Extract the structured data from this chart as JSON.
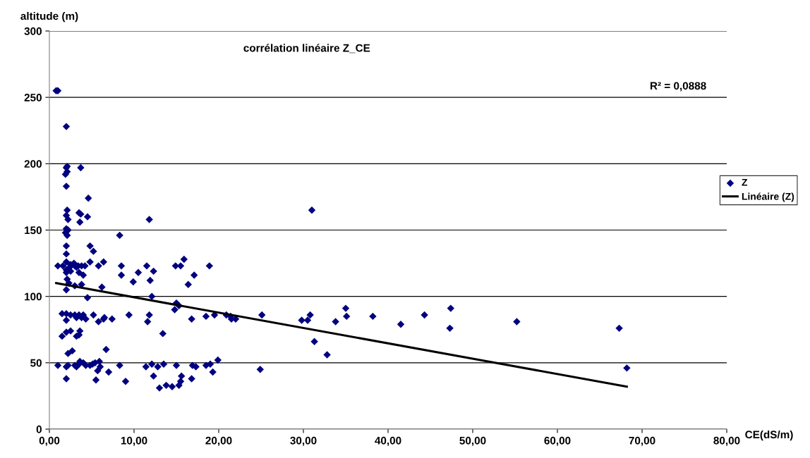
{
  "chart_data": {
    "type": "scatter",
    "title": "corrélation linéaire Z_CE",
    "xlabel": "CE(dS/m)",
    "ylabel": "altitude (m)",
    "annotations": [
      "R² = 0,0888"
    ],
    "xlim": [
      0,
      80
    ],
    "ylim": [
      0,
      300
    ],
    "xticks": [
      {
        "value": 0,
        "label": "0,00"
      },
      {
        "value": 10,
        "label": "10,00"
      },
      {
        "value": 20,
        "label": "20,00"
      },
      {
        "value": 30,
        "label": "30,00"
      },
      {
        "value": 40,
        "label": "40,00"
      },
      {
        "value": 50,
        "label": "50,00"
      },
      {
        "value": 60,
        "label": "60,00"
      },
      {
        "value": 70,
        "label": "70,00"
      },
      {
        "value": 80,
        "label": "80,00"
      }
    ],
    "yticks": [
      0,
      50,
      100,
      150,
      200,
      250,
      300
    ],
    "grid": "y",
    "legend": "right",
    "marker": "diamond",
    "series": [
      {
        "name": "Z",
        "color": "#000080",
        "x": [
          0.8,
          1.0,
          2.0,
          2.1,
          2.0,
          2.1,
          1.9,
          3.7,
          2.0,
          2.1,
          3.5,
          3.7,
          4.5,
          2.0,
          2.2,
          2.0,
          1.9,
          2.2,
          2.1,
          3.6,
          4.6,
          2.0,
          2.0,
          4.8,
          5.2,
          2.0,
          2.5,
          2.9,
          1.0,
          2.0,
          2.4,
          3.0,
          3.4,
          3.8,
          4.2,
          1.6,
          2.0,
          2.5,
          3.2,
          3.5,
          4.0,
          4.8,
          5.8,
          6.4,
          2.1,
          2.3,
          2.0,
          3.0,
          3.8,
          6.2,
          4.5,
          8.3,
          8.5,
          8.5,
          11.8,
          11.5,
          12.3,
          10.5,
          9.9,
          11.9,
          12.1,
          14.9,
          15.5,
          15.9,
          17.1,
          16.4,
          18.9,
          20.9,
          22.0,
          21.5,
          25.1,
          29.8,
          30.8,
          30.5,
          31.0,
          31.3,
          32.8,
          33.8,
          35.0,
          35.1,
          38.2,
          41.5,
          44.3,
          47.4,
          47.3,
          55.2,
          67.3,
          68.2,
          15.0,
          15.3,
          14.8,
          13.4,
          11.8,
          11.6,
          9.4,
          7.4,
          6.5,
          6.4,
          5.2,
          4.0,
          4.3,
          2.0,
          1.5,
          2.5,
          3.0,
          3.5,
          3.2,
          3.8,
          2.0,
          2.0,
          2.5,
          3.5,
          3.6,
          3.2,
          1.5,
          2.2,
          2.7,
          6.7,
          5.8,
          6.0,
          7.0,
          5.5,
          2.0,
          5.7,
          1.0,
          2.0,
          2.2,
          3.0,
          3.2,
          3.5,
          3.6,
          4.0,
          4.3,
          4.8,
          5.1,
          5.4,
          5.9,
          8.3,
          9.0,
          11.4,
          12.1,
          12.3,
          12.8,
          13.0,
          13.5,
          13.8,
          14.5,
          15.0,
          15.3,
          15.5,
          15.6,
          16.8,
          16.9,
          17.3,
          18.5,
          19.0,
          19.3,
          19.9,
          19.5,
          18.5,
          16.8,
          21.4,
          24.9
        ],
        "values": [
          255,
          255,
          228,
          198,
          197,
          194,
          192,
          197,
          183,
          165,
          163,
          162,
          160,
          161,
          158,
          151,
          148,
          150,
          146,
          156,
          174,
          138,
          132,
          138,
          134,
          126,
          124,
          125,
          123,
          120,
          122,
          123,
          123,
          123,
          123,
          123,
          118,
          119,
          122,
          118,
          116,
          126,
          123,
          126,
          113,
          110,
          105,
          108,
          109,
          107,
          99,
          146,
          123,
          116,
          158,
          123,
          119,
          118,
          111,
          112,
          100,
          123,
          123,
          128,
          116,
          109,
          123,
          86,
          83,
          83,
          86,
          82,
          86,
          82,
          165,
          66,
          56,
          81,
          91,
          85,
          85,
          79,
          86,
          91,
          76,
          81,
          76,
          46,
          95,
          93,
          90,
          72,
          86,
          81,
          86,
          83,
          84,
          83,
          86,
          86,
          83,
          87,
          87,
          86,
          86,
          86,
          84,
          84,
          82,
          73,
          74,
          71,
          74,
          70,
          70,
          57,
          59,
          60,
          81,
          47,
          43,
          37,
          38,
          44,
          48,
          47,
          48,
          48,
          47,
          49,
          51,
          50,
          48,
          48,
          49,
          50,
          51,
          48,
          36,
          47,
          49,
          40,
          47,
          31,
          49,
          33,
          32,
          48,
          33,
          36,
          40,
          38,
          48,
          47,
          48,
          49,
          43,
          52,
          86,
          85,
          83,
          85,
          45
        ]
      },
      {
        "name": "Linéaire (Z)",
        "type": "line",
        "color": "#000000",
        "x": [
          0.8,
          68.2
        ],
        "values": [
          110,
          32
        ],
        "marker": "none",
        "line_style": "solid"
      }
    ]
  }
}
